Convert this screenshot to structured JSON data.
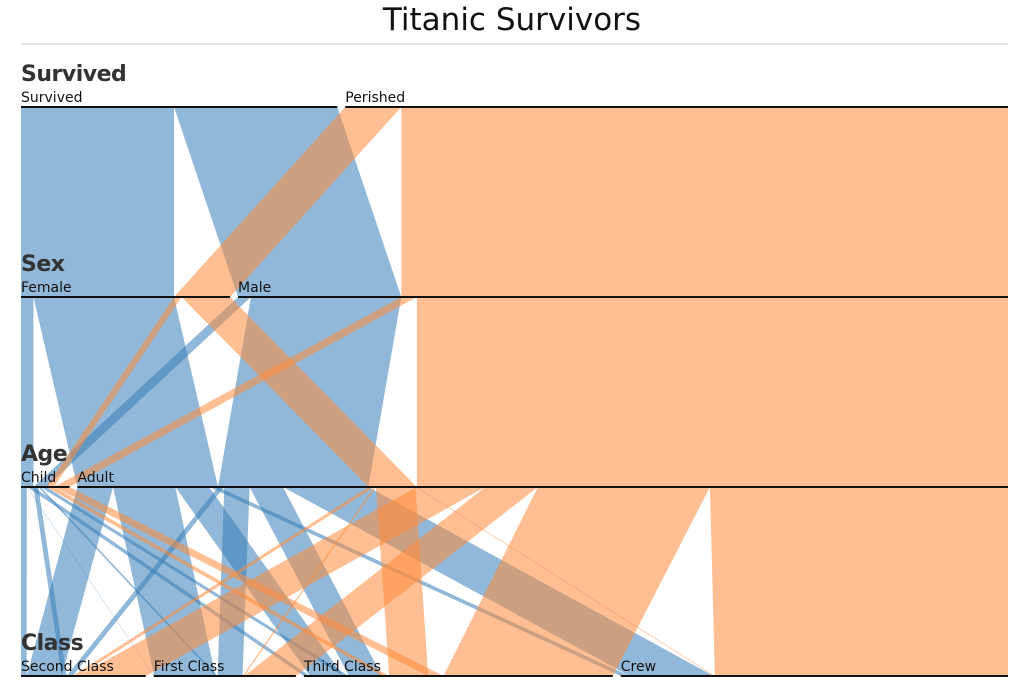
{
  "title": "Titanic Survivors",
  "colors": {
    "survived": "#377eb8",
    "perished": "#ff8a3a",
    "ribbon_opacity": 0.55
  },
  "dimensions": [
    {
      "key": "survived",
      "title": "Survived",
      "categories": [
        "Survived",
        "Perished"
      ]
    },
    {
      "key": "sex",
      "title": "Sex",
      "categories": [
        "Female",
        "Male"
      ]
    },
    {
      "key": "age",
      "title": "Age",
      "categories": [
        "Child",
        "Adult"
      ]
    },
    {
      "key": "class",
      "title": "Class",
      "categories": [
        "Second Class",
        "First Class",
        "Third Class",
        "Crew"
      ]
    }
  ],
  "chart_data": {
    "type": "parallel-sets",
    "title": "Titanic Survivors",
    "dimensions": [
      "Survived",
      "Sex",
      "Age",
      "Class"
    ],
    "color_by": "Survived",
    "records": [
      {
        "survived": "Survived",
        "sex": "Female",
        "age": "Child",
        "class": "First Class",
        "count": 1
      },
      {
        "survived": "Survived",
        "sex": "Female",
        "age": "Child",
        "class": "Second Class",
        "count": 13
      },
      {
        "survived": "Survived",
        "sex": "Female",
        "age": "Child",
        "class": "Third Class",
        "count": 14
      },
      {
        "survived": "Survived",
        "sex": "Female",
        "age": "Adult",
        "class": "First Class",
        "count": 140
      },
      {
        "survived": "Survived",
        "sex": "Female",
        "age": "Adult",
        "class": "Second Class",
        "count": 80
      },
      {
        "survived": "Survived",
        "sex": "Female",
        "age": "Adult",
        "class": "Third Class",
        "count": 76
      },
      {
        "survived": "Survived",
        "sex": "Female",
        "age": "Adult",
        "class": "Crew",
        "count": 20
      },
      {
        "survived": "Survived",
        "sex": "Male",
        "age": "Child",
        "class": "First Class",
        "count": 5
      },
      {
        "survived": "Survived",
        "sex": "Male",
        "age": "Child",
        "class": "Second Class",
        "count": 11
      },
      {
        "survived": "Survived",
        "sex": "Male",
        "age": "Child",
        "class": "Third Class",
        "count": 13
      },
      {
        "survived": "Survived",
        "sex": "Male",
        "age": "Adult",
        "class": "First Class",
        "count": 57
      },
      {
        "survived": "Survived",
        "sex": "Male",
        "age": "Adult",
        "class": "Second Class",
        "count": 14
      },
      {
        "survived": "Survived",
        "sex": "Male",
        "age": "Adult",
        "class": "Third Class",
        "count": 75
      },
      {
        "survived": "Survived",
        "sex": "Male",
        "age": "Adult",
        "class": "Crew",
        "count": 192
      },
      {
        "survived": "Perished",
        "sex": "Female",
        "age": "Child",
        "class": "Third Class",
        "count": 17
      },
      {
        "survived": "Perished",
        "sex": "Female",
        "age": "Adult",
        "class": "First Class",
        "count": 4
      },
      {
        "survived": "Perished",
        "sex": "Female",
        "age": "Adult",
        "class": "Second Class",
        "count": 13
      },
      {
        "survived": "Perished",
        "sex": "Female",
        "age": "Adult",
        "class": "Third Class",
        "count": 89
      },
      {
        "survived": "Perished",
        "sex": "Female",
        "age": "Adult",
        "class": "Crew",
        "count": 3
      },
      {
        "survived": "Perished",
        "sex": "Male",
        "age": "Child",
        "class": "Third Class",
        "count": 35
      },
      {
        "survived": "Perished",
        "sex": "Male",
        "age": "Adult",
        "class": "First Class",
        "count": 118
      },
      {
        "survived": "Perished",
        "sex": "Male",
        "age": "Adult",
        "class": "Second Class",
        "count": 154
      },
      {
        "survived": "Perished",
        "sex": "Male",
        "age": "Adult",
        "class": "Third Class",
        "count": 387
      },
      {
        "survived": "Perished",
        "sex": "Male",
        "age": "Adult",
        "class": "Crew",
        "count": 670
      }
    ]
  }
}
